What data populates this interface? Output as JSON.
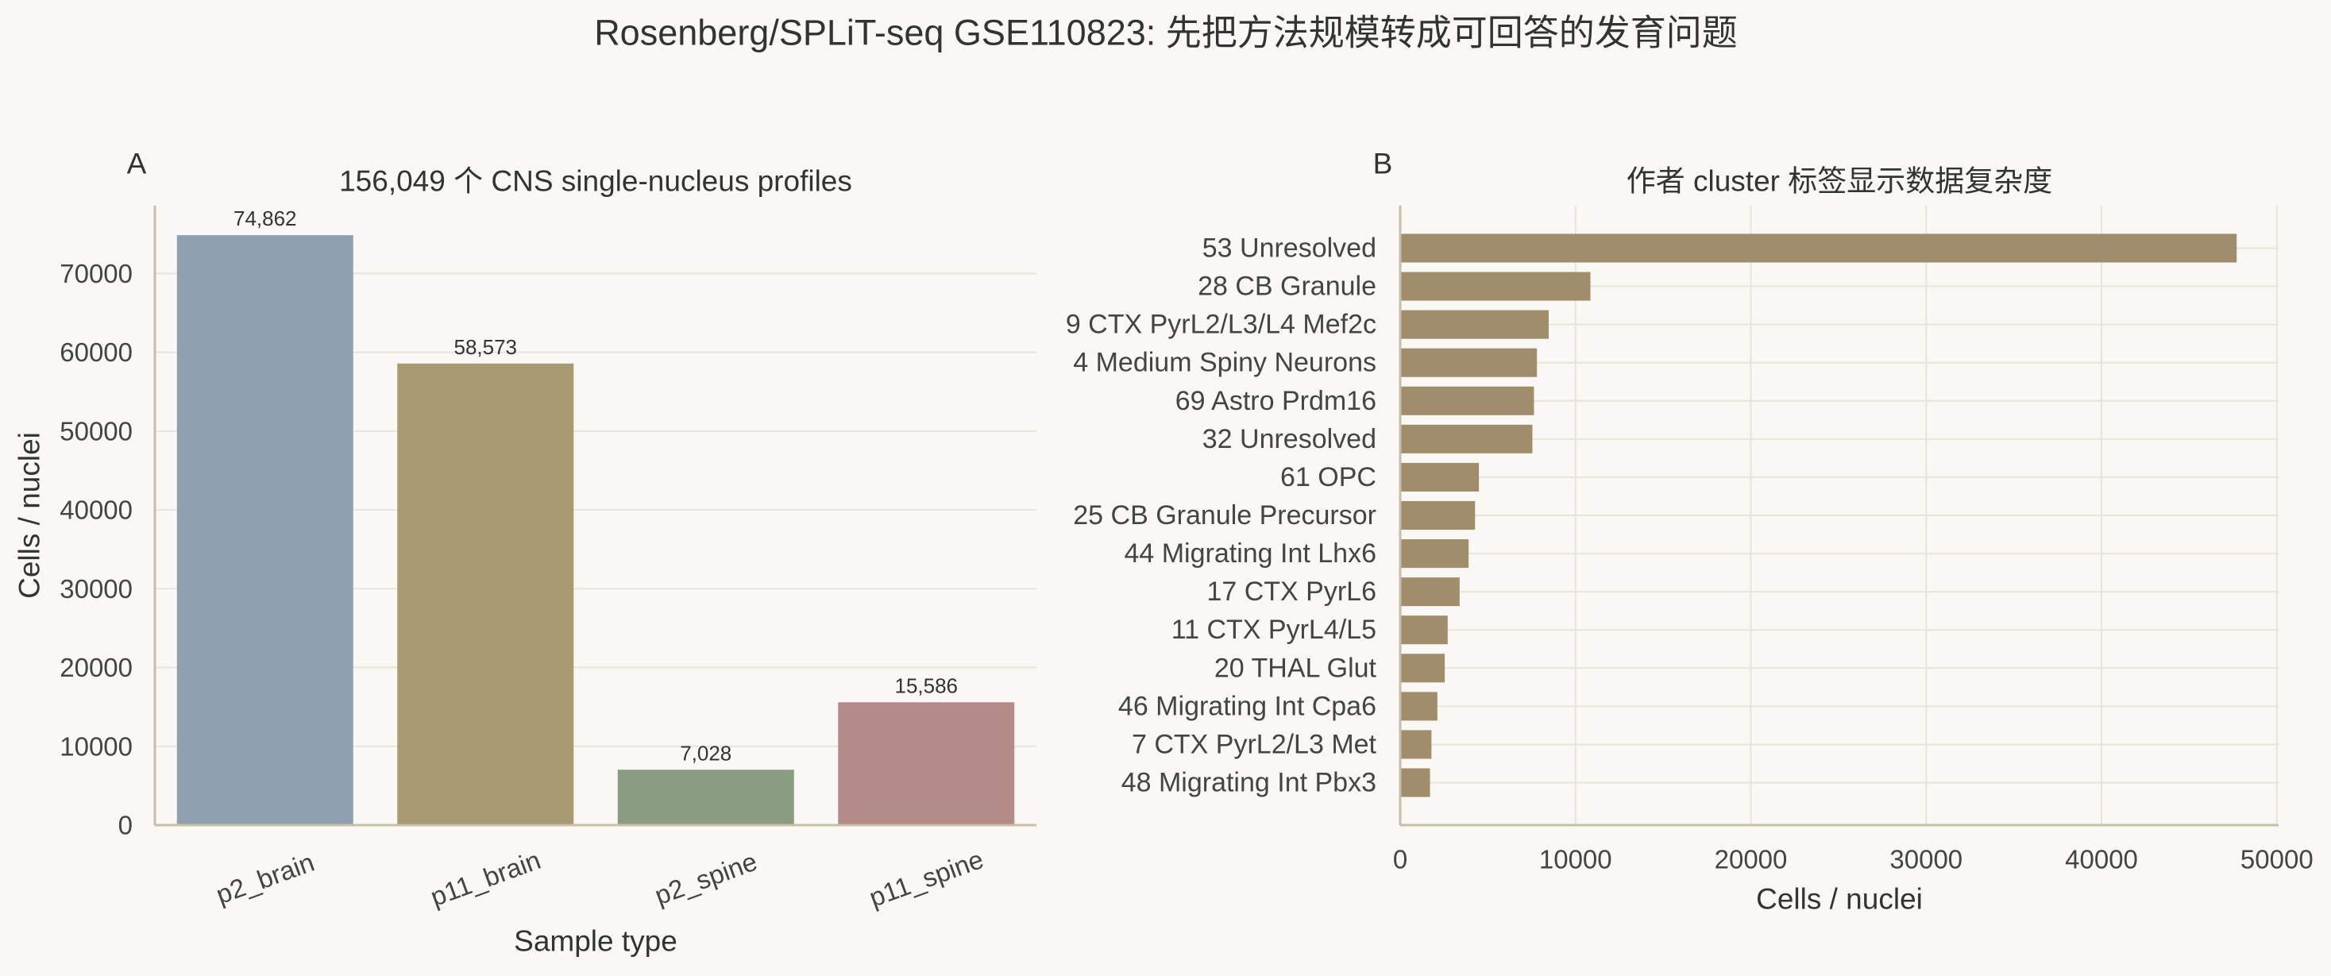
{
  "figure": {
    "suptitle": "Rosenberg/SPLiT-seq GSE110823: 先把方法规模转成可回答的发育问题"
  },
  "chart_data": [
    {
      "panel_label": "A",
      "type": "bar",
      "title": "156,049 个 CNS single-nucleus profiles",
      "xlabel": "Sample type",
      "ylabel": "Cells / nuclei",
      "categories": [
        "p2_brain",
        "p11_brain",
        "p2_spine",
        "p11_spine"
      ],
      "values": [
        74862,
        58573,
        7028,
        15586
      ],
      "value_labels": [
        "74,862",
        "58,573",
        "7,028",
        "15,586"
      ],
      "colors": [
        "#8fa0b1",
        "#a99b71",
        "#899d80",
        "#b38b89"
      ],
      "ylim": [
        0,
        78605
      ],
      "yticks": [
        0,
        10000,
        20000,
        30000,
        40000,
        50000,
        60000,
        70000
      ],
      "grid": true,
      "legend": false
    },
    {
      "panel_label": "B",
      "type": "bar",
      "orientation": "horizontal",
      "title": "作者 cluster 标签显示数据复杂度",
      "xlabel": "Cells / nuclei",
      "categories": [
        "53 Unresolved",
        "28 CB Granule",
        "9 CTX PyrL2/L3/L4 Mef2c",
        "4 Medium Spiny Neurons",
        "69 Astro Prdm16",
        "32 Unresolved",
        "61 OPC",
        "25 CB Granule Precursor",
        "44 Migrating Int Lhx6",
        "17 CTX PyrL6",
        "11 CTX PyrL4/L5",
        "20 THAL Glut",
        "46 Migrating Int Cpa6",
        "7 CTX PyrL2/L3 Met",
        "48 Migrating Int Pbx3"
      ],
      "values": [
        47710,
        10850,
        8470,
        7800,
        7630,
        7540,
        4490,
        4270,
        3900,
        3390,
        2710,
        2540,
        2120,
        1780,
        1700
      ],
      "color": "#a08d6b",
      "xlim": [
        0,
        50100
      ],
      "xticks": [
        0,
        10000,
        20000,
        30000,
        40000,
        50000
      ],
      "grid": true,
      "legend": false
    }
  ]
}
